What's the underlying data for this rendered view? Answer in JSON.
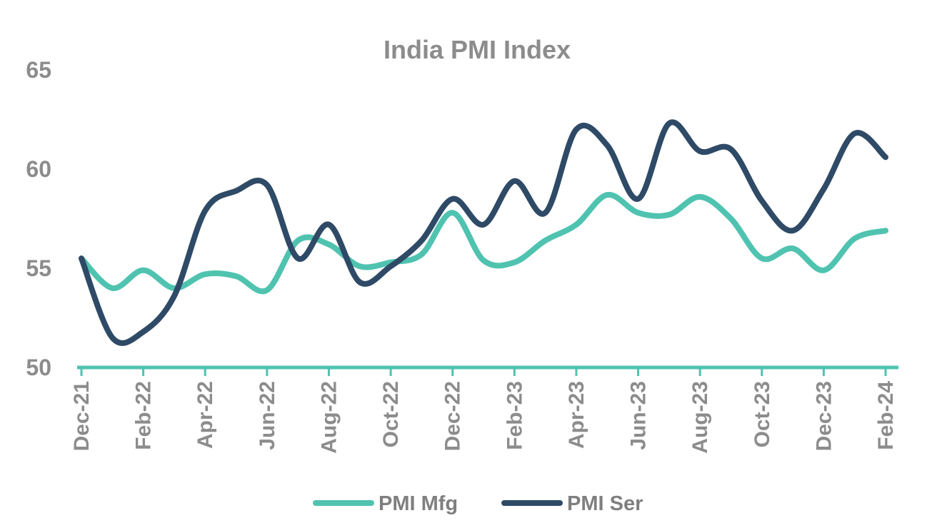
{
  "chart_data": {
    "type": "line",
    "title": "India PMI Index",
    "xlabel": "",
    "ylabel": "",
    "ylim": [
      50,
      65
    ],
    "yticks": [
      50,
      55,
      60,
      65
    ],
    "x": [
      "Dec-21",
      "Jan-22",
      "Feb-22",
      "Mar-22",
      "Apr-22",
      "May-22",
      "Jun-22",
      "Jul-22",
      "Aug-22",
      "Sep-22",
      "Oct-22",
      "Nov-22",
      "Dec-22",
      "Jan-23",
      "Feb-23",
      "Mar-23",
      "Apr-23",
      "May-23",
      "Jun-23",
      "Jul-23",
      "Aug-23",
      "Sep-23",
      "Oct-23",
      "Nov-23",
      "Dec-23",
      "Jan-24",
      "Feb-24"
    ],
    "xtick_labels": [
      "Dec-21",
      "Feb-22",
      "Apr-22",
      "Jun-22",
      "Aug-22",
      "Oct-22",
      "Dec-22",
      "Feb-23",
      "Apr-23",
      "Jun-23",
      "Aug-23",
      "Oct-23",
      "Dec-23",
      "Feb-24"
    ],
    "series": [
      {
        "name": "PMI Mfg",
        "color": "#4fc3b0",
        "values": [
          55.5,
          54.0,
          54.9,
          54.0,
          54.7,
          54.6,
          53.9,
          56.4,
          56.2,
          55.1,
          55.3,
          55.7,
          57.8,
          55.4,
          55.3,
          56.4,
          57.2,
          58.7,
          57.8,
          57.7,
          58.6,
          57.5,
          55.5,
          56.0,
          54.9,
          56.5,
          56.9
        ]
      },
      {
        "name": "PMI Ser",
        "color": "#2e4a66",
        "values": [
          55.5,
          51.5,
          51.8,
          53.6,
          57.9,
          58.9,
          59.2,
          55.5,
          57.2,
          54.3,
          55.1,
          56.4,
          58.5,
          57.2,
          59.4,
          57.8,
          62.0,
          61.2,
          58.5,
          62.3,
          60.9,
          61.0,
          58.4,
          56.9,
          59.0,
          61.8,
          60.6
        ]
      }
    ],
    "legend": {
      "position": "bottom"
    },
    "grid": false,
    "axis_color": "#4fc3b0"
  }
}
